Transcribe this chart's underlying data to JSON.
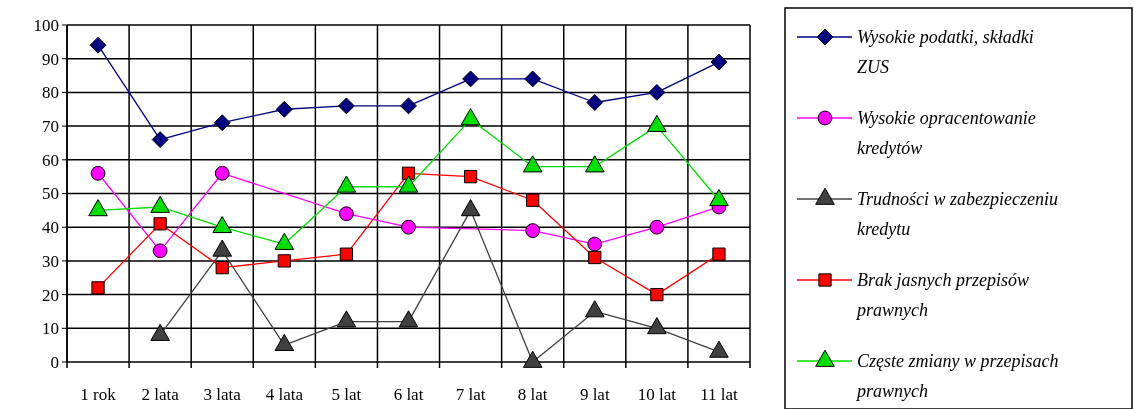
{
  "chart_data": {
    "type": "line",
    "categories": [
      "1 rok",
      "2 lata",
      "3 lata",
      "4 lata",
      "5 lat",
      "6 lat",
      "7 lat",
      "8 lat",
      "9 lat",
      "10 lat",
      "11 lat"
    ],
    "ylim": [
      0,
      100
    ],
    "yticks": [
      0,
      10,
      20,
      30,
      40,
      50,
      60,
      70,
      80,
      90,
      100
    ],
    "grid": true,
    "legend": "right",
    "series": [
      {
        "name": "Wysokie podatki, składki ZUS",
        "color": "#000080",
        "marker": "diamond",
        "values": [
          94,
          66,
          71,
          75,
          76,
          76,
          84,
          84,
          77,
          80,
          89
        ]
      },
      {
        "name": "Wysokie opracentowanie kredytów",
        "color": "#ff00ff",
        "marker": "circle",
        "values": [
          56,
          33,
          56,
          null,
          44,
          40,
          null,
          39,
          35,
          40,
          46
        ]
      },
      {
        "name": "Trudności w zabezpieczeniu kredytu",
        "color": "#404040",
        "marker": "triangle",
        "values": [
          null,
          8,
          33,
          5,
          12,
          12,
          45,
          0,
          15,
          10,
          3
        ]
      },
      {
        "name": "Brak jasnych przepisów prawnych",
        "color": "#ff0000",
        "marker": "square",
        "values": [
          22,
          41,
          28,
          30,
          32,
          56,
          55,
          48,
          31,
          20,
          32
        ]
      },
      {
        "name": "Częste zmiany w przepisach prawnych",
        "color": "#00dd00",
        "marker": "triangle",
        "values": [
          45,
          46,
          40,
          35,
          52,
          52,
          72,
          58,
          58,
          70,
          48
        ]
      }
    ]
  }
}
